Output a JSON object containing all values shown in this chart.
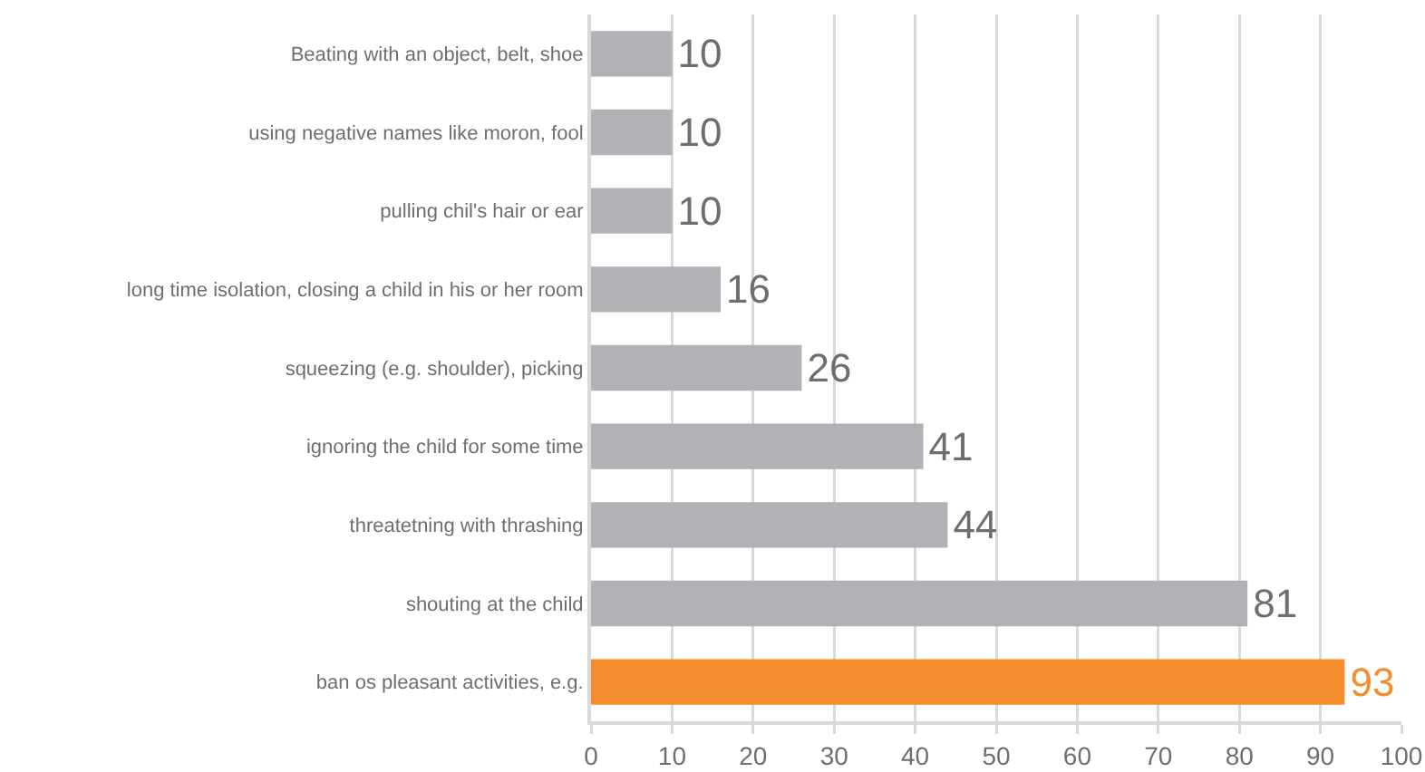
{
  "chart_data": {
    "type": "bar",
    "orientation": "horizontal",
    "categories": [
      "Beating with an object, belt, shoe",
      "using negative names like moron, fool",
      "pulling chil's hair or ear",
      "long time isolation, closing a child in his or her room",
      "squeezing (e.g. shoulder), picking",
      "ignoring the child for some time",
      "threatetning with thrashing",
      "shouting at the child",
      "ban os pleasant activities, e.g."
    ],
    "values": [
      10,
      10,
      10,
      16,
      26,
      41,
      44,
      81,
      93
    ],
    "colors": [
      "#b1b2b5",
      "#b1b2b5",
      "#b1b2b5",
      "#b1b2b5",
      "#b1b2b5",
      "#b1b2b5",
      "#b1b2b5",
      "#b1b2b5",
      "#f58c2e"
    ],
    "xlim": [
      0,
      100
    ],
    "xticks": [
      0,
      10,
      20,
      30,
      40,
      50,
      60,
      70,
      80,
      90,
      100
    ],
    "grid": "x",
    "data_labels": true
  }
}
